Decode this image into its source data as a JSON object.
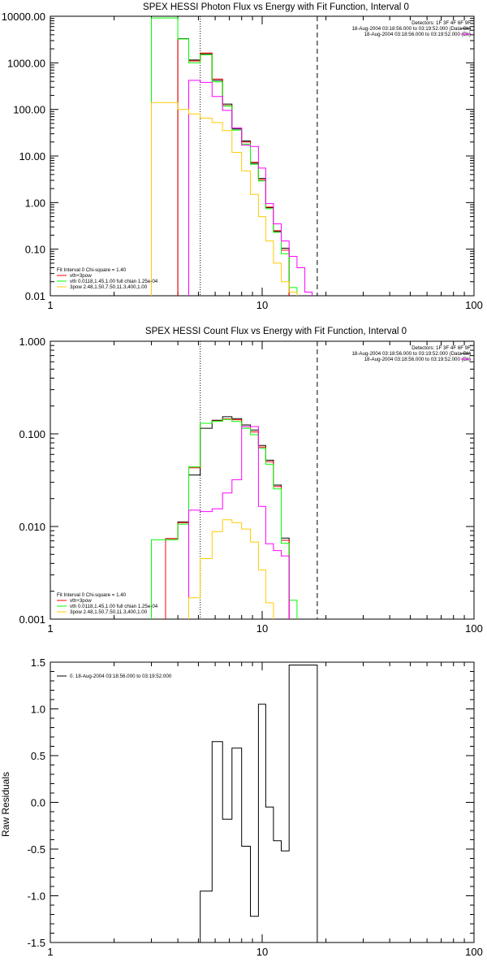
{
  "chart_data": [
    {
      "type": "line",
      "step": true,
      "title": "SPEX HESSI Photon Flux vs Energy with Fit Function, Interval 0",
      "xlabel": "",
      "ylabel": "",
      "x_scale": "log",
      "y_scale": "log",
      "xlim": [
        1,
        100
      ],
      "ylim": [
        0.01,
        10000
      ],
      "x_tick_labels": [
        {
          "v": 1,
          "t": "1"
        },
        {
          "v": 10,
          "t": "10"
        },
        {
          "v": 100,
          "t": "100"
        }
      ],
      "y_tick_labels": [
        {
          "v": 10000,
          "t": "10000.00"
        },
        {
          "v": 1000,
          "t": "1000.00"
        },
        {
          "v": 100,
          "t": "100.00"
        },
        {
          "v": 10,
          "t": "10.00"
        },
        {
          "v": 1,
          "t": "1.00"
        },
        {
          "v": 0.1,
          "t": "0.10"
        },
        {
          "v": 0.01,
          "t": "0.01"
        }
      ],
      "vlines": [
        {
          "x": 5.1,
          "style": "dotted"
        },
        {
          "x": 18.2,
          "style": "dashed"
        }
      ],
      "info_lines": [
        "Detectors: 1F 3F 4F 6F 9F",
        "18-Aug-2004 03:18:56.000 to 03:19:52.000 (Data-Bk)",
        "18-Aug-2004 03:18:56.000 to 03:19:52.000 (Bk)"
      ],
      "legend_header": "Fit Interval 0   Chi-square = 1.40",
      "legend_entries": [
        "vth+3pow",
        "vth 0.0118,1.45,1.00  full chian 1.25e-04",
        "3pow 2.48,1.50,7.50,11.3,400,1.00"
      ],
      "edges": [
        3.0,
        3.5,
        4.0,
        4.5,
        5.1,
        5.8,
        6.5,
        7.2,
        8.0,
        8.8,
        9.6,
        10.4,
        11.3,
        12.3,
        13.4,
        14.6,
        15.9,
        17.2,
        18.2,
        19.4,
        20.6
      ],
      "series": [
        {
          "legend": "",
          "color": "#000000",
          "values": [
            null,
            null,
            3300,
            1150,
            1550,
            420,
            130,
            38,
            21,
            7,
            3.3,
            0.78,
            0.24,
            0.105,
            null,
            null,
            null,
            null,
            null,
            null
          ]
        },
        {
          "legend": "",
          "color": "#ff0000",
          "values": [
            null,
            null,
            3250,
            1100,
            1620,
            450,
            120,
            40,
            20,
            7.3,
            3.1,
            0.8,
            0.25,
            0.095,
            null,
            null,
            null,
            null,
            null,
            null
          ]
        },
        {
          "legend": "",
          "color": "#00ff00",
          "values": [
            9200,
            9200,
            3250,
            1000,
            1500,
            390,
            118,
            36,
            18,
            6.6,
            2.9,
            0.74,
            0.23,
            0.08,
            0.015,
            null,
            null,
            null,
            null,
            null
          ]
        },
        {
          "legend": "",
          "color": "#ff00ff",
          "values": [
            null,
            null,
            null,
            420,
            380,
            190,
            95,
            40,
            17,
            16,
            5.5,
            0.95,
            0.35,
            0.15,
            0.07,
            0.04,
            0.012,
            null,
            null,
            null
          ]
        },
        {
          "legend": "",
          "color": "#ffcc00",
          "values": [
            140,
            140,
            100,
            80,
            65,
            52,
            35,
            12,
            4.8,
            1.5,
            0.5,
            0.15,
            0.05,
            0.02,
            0.012,
            null,
            null,
            null,
            null,
            null
          ]
        }
      ]
    },
    {
      "type": "line",
      "step": true,
      "title": "SPEX HESSI Count Flux vs Energy with Fit Function, Interval 0",
      "xlabel": "",
      "ylabel": "",
      "x_scale": "log",
      "y_scale": "log",
      "xlim": [
        1,
        100
      ],
      "ylim": [
        0.001,
        1
      ],
      "x_tick_labels": [
        {
          "v": 1,
          "t": "1"
        },
        {
          "v": 10,
          "t": "10"
        },
        {
          "v": 100,
          "t": "100"
        }
      ],
      "y_tick_labels": [
        {
          "v": 1,
          "t": "1.000"
        },
        {
          "v": 0.1,
          "t": "0.100"
        },
        {
          "v": 0.01,
          "t": "0.010"
        },
        {
          "v": 0.001,
          "t": "0.001"
        }
      ],
      "vlines": [
        {
          "x": 5.1,
          "style": "dotted"
        },
        {
          "x": 18.2,
          "style": "dashed"
        }
      ],
      "info_lines": [
        "Detectors: 1F 3F 4F 6F 9F",
        "18-Aug-2004 03:18:56.000 to 03:19:52.000 (Data-Bk)",
        "18-Aug-2004 03:18:56.000 to 03:19:52.000 (Bk)"
      ],
      "legend_header": "Fit Interval 0   Chi-square = 1.40",
      "legend_entries": [
        "vth+3pow",
        "vth 0.0118,1.45,1.00  full chian 1.25e-04",
        "3pow 2.48,1.50,7.50,11.3,400,1.00"
      ],
      "edges": [
        3.0,
        3.5,
        4.0,
        4.5,
        5.1,
        5.8,
        6.5,
        7.2,
        8.0,
        8.8,
        9.6,
        10.4,
        11.3,
        12.3,
        13.4,
        14.6,
        15.9,
        17.2,
        18.2,
        19.4,
        20.6
      ],
      "series": [
        {
          "legend": "",
          "color": "#000000",
          "values": [
            null,
            0.0074,
            0.0112,
            0.036,
            0.115,
            0.14,
            0.153,
            0.146,
            0.125,
            0.11,
            0.075,
            0.052,
            0.028,
            0.0075,
            null,
            null,
            null,
            null,
            null,
            null
          ]
        },
        {
          "legend": "",
          "color": "#ff0000",
          "values": [
            null,
            0.0074,
            0.011,
            0.043,
            0.13,
            0.138,
            0.145,
            0.142,
            0.12,
            0.105,
            0.072,
            0.05,
            0.027,
            0.0071,
            null,
            null,
            null,
            null,
            null,
            null
          ]
        },
        {
          "legend": "",
          "color": "#00ff00",
          "values": [
            0.0072,
            0.0072,
            0.0106,
            0.044,
            0.13,
            0.137,
            0.143,
            0.136,
            0.115,
            0.098,
            0.07,
            0.047,
            0.0255,
            0.0066,
            0.0016,
            null,
            null,
            null,
            null,
            null
          ]
        },
        {
          "legend": "",
          "color": "#ff00ff",
          "values": [
            null,
            null,
            null,
            0.015,
            0.0145,
            0.0155,
            0.023,
            0.032,
            0.12,
            0.12,
            0.0165,
            0.0065,
            0.0055,
            0.0048,
            null,
            null,
            null,
            null,
            null,
            null
          ]
        },
        {
          "legend": "",
          "color": "#ffcc00",
          "values": [
            null,
            null,
            null,
            0.0017,
            0.0045,
            0.0088,
            0.0118,
            0.011,
            0.0094,
            0.0068,
            0.0034,
            0.0015,
            null,
            null,
            null,
            null,
            null,
            null,
            null,
            null
          ]
        }
      ]
    },
    {
      "type": "line",
      "step": true,
      "title": "",
      "xlabel": "",
      "ylabel": "Raw Residuals",
      "x_scale": "log",
      "y_scale": "linear",
      "xlim": [
        1,
        100
      ],
      "ylim": [
        -1.5,
        1.5
      ],
      "x_tick_labels": [
        {
          "v": 1,
          "t": "1"
        },
        {
          "v": 10,
          "t": "10"
        },
        {
          "v": 100,
          "t": "100"
        }
      ],
      "y_tick_labels": [
        {
          "v": 1.5,
          "t": "1.5"
        },
        {
          "v": 1.0,
          "t": "1.0"
        },
        {
          "v": 0.5,
          "t": "0.5"
        },
        {
          "v": 0.0,
          "t": "0.0"
        },
        {
          "v": -0.5,
          "t": "-0.5"
        },
        {
          "v": -1.0,
          "t": "-1.0"
        },
        {
          "v": -1.5,
          "t": "-1.5"
        }
      ],
      "legend_entries": [
        "0. 18-Aug-2004 03:18:56.000 to 03:19:52.000"
      ],
      "edges": [
        5.1,
        5.8,
        6.5,
        7.2,
        8.0,
        8.8,
        9.6,
        10.4,
        11.3,
        12.3,
        13.4,
        14.6,
        15.9,
        17.2,
        18.2
      ],
      "series": [
        {
          "legend": "",
          "color": "#000000",
          "values": [
            -0.95,
            0.65,
            -0.18,
            0.58,
            -0.47,
            -1.22,
            1.05,
            -0.05,
            -0.41,
            -0.52,
            1.47,
            1.47,
            1.47,
            1.47
          ]
        }
      ]
    }
  ]
}
